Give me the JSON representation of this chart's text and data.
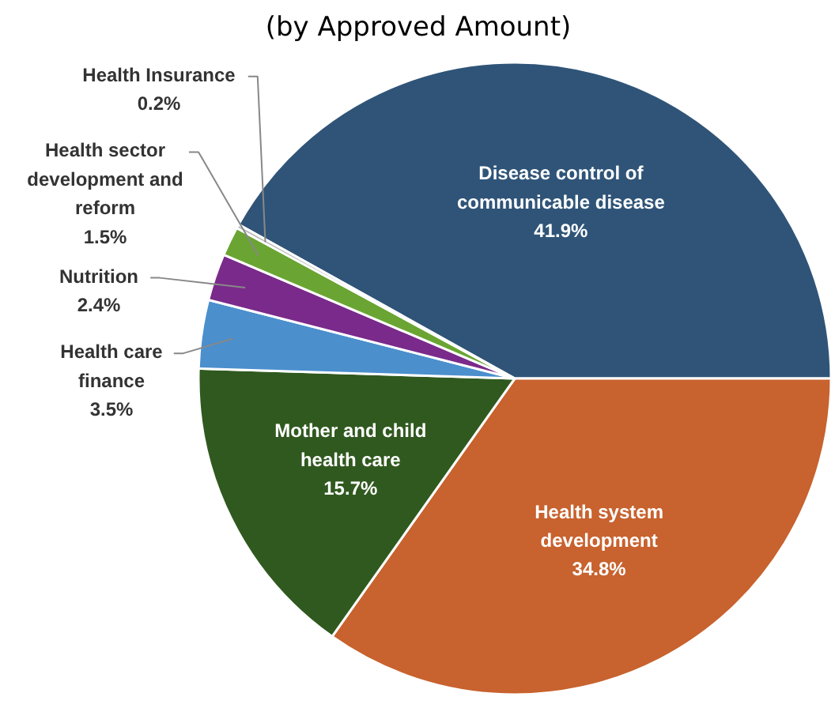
{
  "chart_data": {
    "type": "pie",
    "title": "(by Approved Amount)",
    "categories": [
      "Disease control of communicable disease",
      "Health system development",
      "Mother and child health care",
      "Health care finance",
      "Nutrition",
      "Health sector development and reform",
      "Health Insurance"
    ],
    "values": [
      41.9,
      34.8,
      15.7,
      3.5,
      2.4,
      1.5,
      0.2
    ],
    "colors": [
      "#2f5478",
      "#c8622e",
      "#30591f",
      "#4b8fcd",
      "#7a2a8a",
      "#6aa533",
      "#b8b8b8"
    ],
    "value_labels": [
      "41.9%",
      "34.8%",
      "15.7%",
      "3.5%",
      "2.4%",
      "1.5%",
      "0.2%"
    ],
    "data_labels": true
  }
}
